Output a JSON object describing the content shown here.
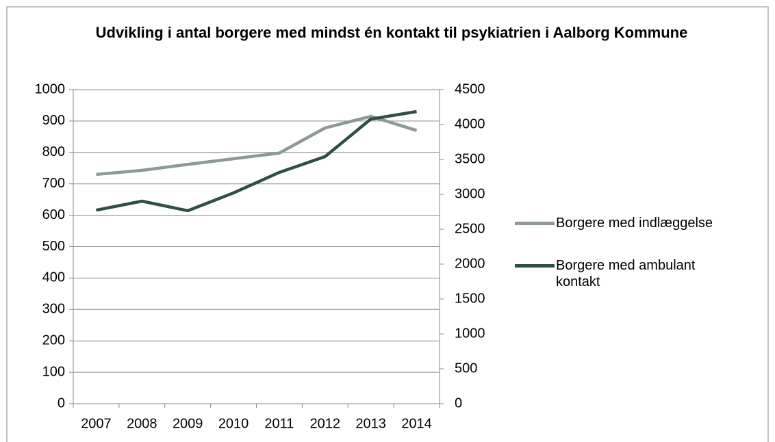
{
  "chart_data": {
    "type": "line",
    "title": "Udvikling i antal borgere med mindst én kontakt til psykiatrien i Aalborg Kommune",
    "categories": [
      "2007",
      "2008",
      "2009",
      "2010",
      "2011",
      "2012",
      "2013",
      "2014"
    ],
    "series": [
      {
        "name": "Borgere med indlæggelse",
        "color": "#8c9a91",
        "values": [
          730,
          743,
          762,
          780,
          798,
          878,
          915,
          870
        ]
      },
      {
        "name": "Borgere med ambulant kontakt",
        "color": "#2f4f3f",
        "axis": "y2",
        "values": [
          2773,
          2902,
          2765,
          3020,
          3314,
          3540,
          4078,
          4186
        ]
      }
    ],
    "ylim": [
      0,
      1000
    ],
    "yticks": [
      0,
      100,
      200,
      300,
      400,
      500,
      600,
      700,
      800,
      900,
      1000
    ],
    "y2lim": [
      0,
      4500
    ],
    "y2ticks": [
      0,
      500,
      1000,
      1500,
      2000,
      2500,
      3000,
      3500,
      4000,
      4500
    ],
    "grid": true,
    "legend": "right"
  }
}
